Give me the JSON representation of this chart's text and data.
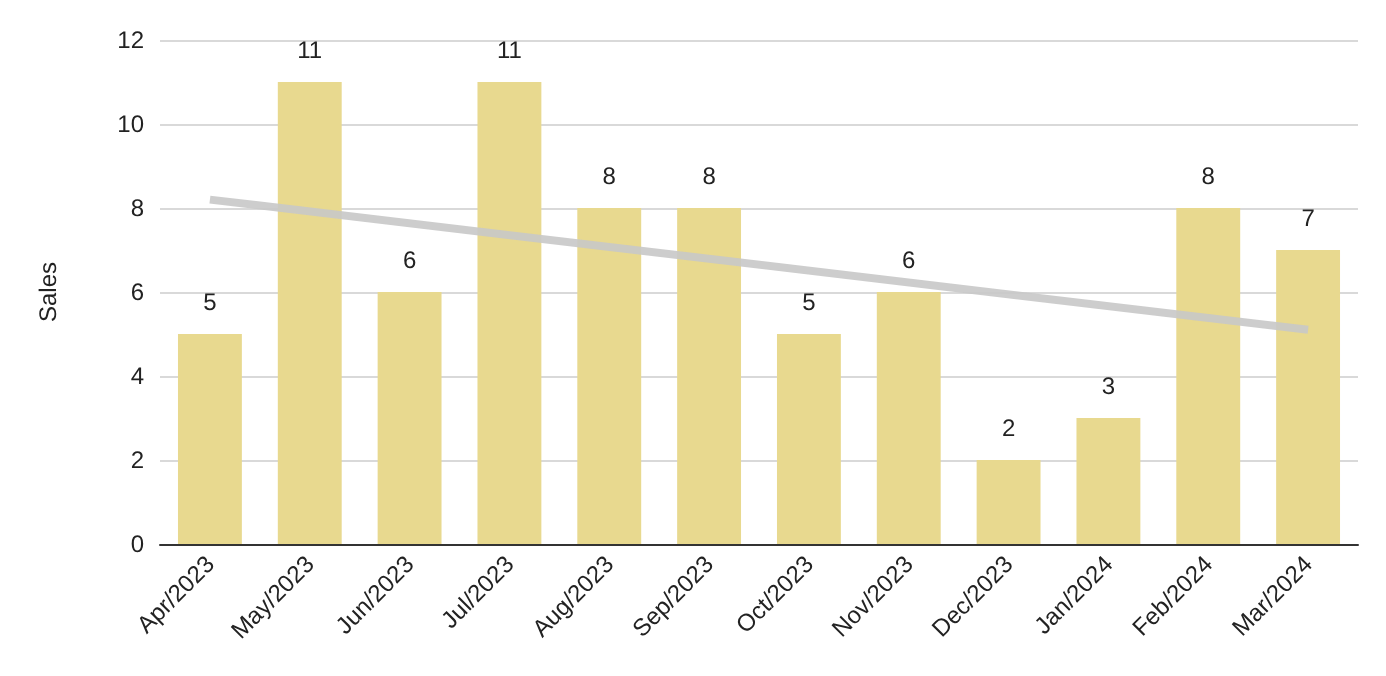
{
  "chart_data": {
    "type": "bar",
    "categories": [
      "Apr/2023",
      "May/2023",
      "Jun/2023",
      "Jul/2023",
      "Aug/2023",
      "Sep/2023",
      "Oct/2023",
      "Nov/2023",
      "Dec/2023",
      "Jan/2024",
      "Feb/2024",
      "Mar/2024"
    ],
    "series": [
      {
        "color": "#e8d98f",
        "values": [
          5,
          11,
          6,
          11,
          8,
          8,
          5,
          6,
          2,
          3,
          8,
          7
        ],
        "value_labels": [
          "5",
          "11",
          "6",
          "11",
          "8",
          "8",
          "5",
          "6",
          "2",
          "3",
          "8",
          "7"
        ]
      },
      {
        "type": "line",
        "color": "#c8c8c8",
        "x": [
          "Apr/2023",
          "Mar/2024"
        ],
        "values": [
          8.2,
          5.1
        ]
      }
    ],
    "ylabel": "Sales",
    "ylim": [
      0,
      12
    ],
    "yticks": [
      0,
      2,
      4,
      6,
      8,
      10,
      12
    ],
    "grid": "y",
    "marker": "none"
  }
}
